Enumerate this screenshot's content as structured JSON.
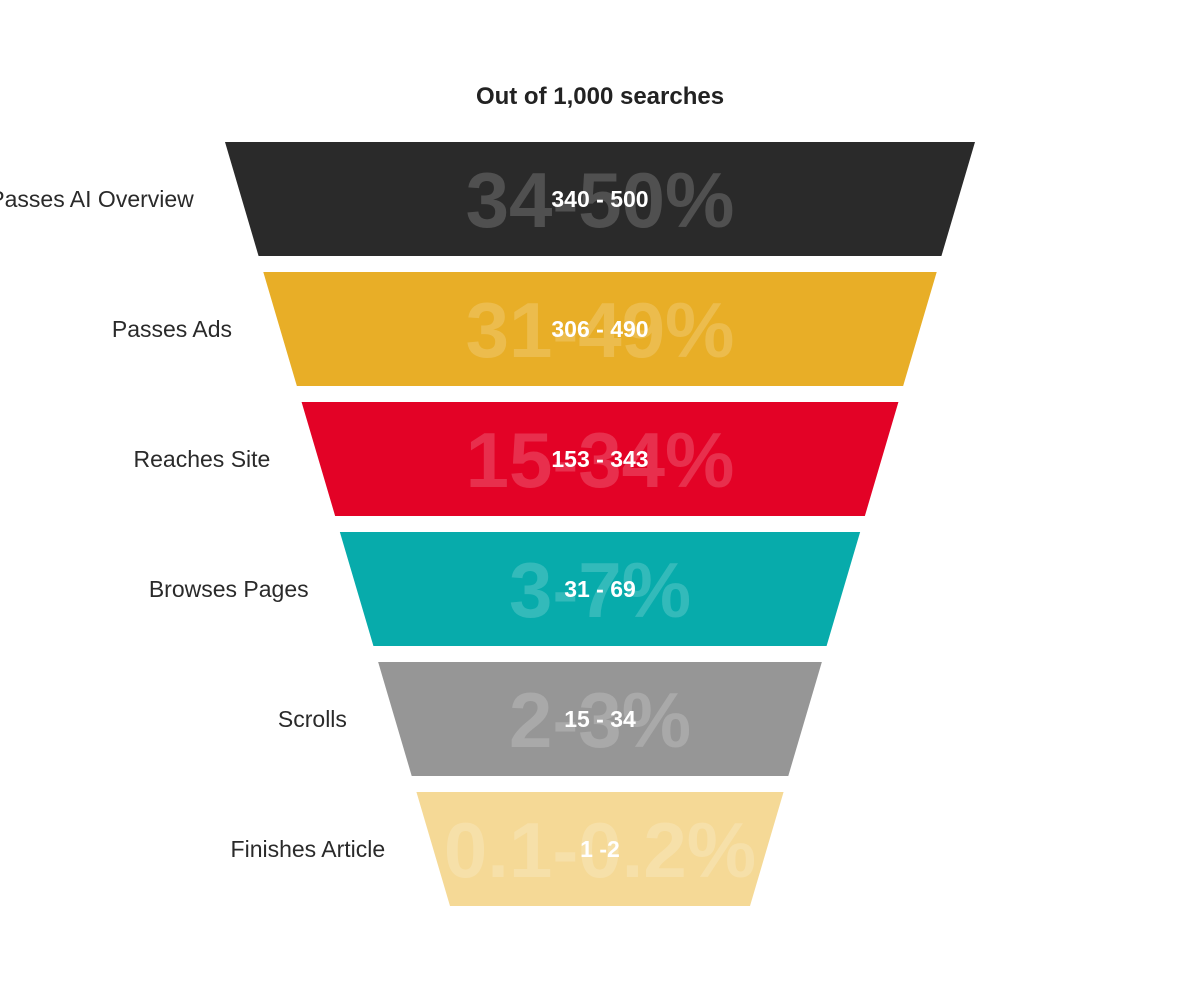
{
  "chart_data": {
    "type": "funnel",
    "title": "Out of 1,000 searches",
    "stages": [
      {
        "label": "Passes AI Overview",
        "percent_label": "34-50%",
        "count_label": "340 - 500",
        "count_low": 340,
        "count_high": 500,
        "color": "#2a2a2a"
      },
      {
        "label": "Passes Ads",
        "percent_label": "31-49%",
        "count_label": "306 - 490",
        "count_low": 306,
        "count_high": 490,
        "color": "#e8ae27"
      },
      {
        "label": "Reaches Site",
        "percent_label": "15-34%",
        "count_label": "153 - 343",
        "count_low": 153,
        "count_high": 343,
        "color": "#e30226"
      },
      {
        "label": "Browses Pages",
        "percent_label": "3-7%",
        "count_label": "31 - 69",
        "count_low": 31,
        "count_high": 69,
        "color": "#07abab"
      },
      {
        "label": "Scrolls",
        "percent_label": "2-3%",
        "count_label": "15 - 34",
        "count_low": 15,
        "count_high": 34,
        "color": "#969696"
      },
      {
        "label": "Finishes Article",
        "percent_label": "0.1-0.2%",
        "count_label": "1 -2",
        "count_low": 1,
        "count_high": 2,
        "color": "#f5d996"
      }
    ]
  }
}
